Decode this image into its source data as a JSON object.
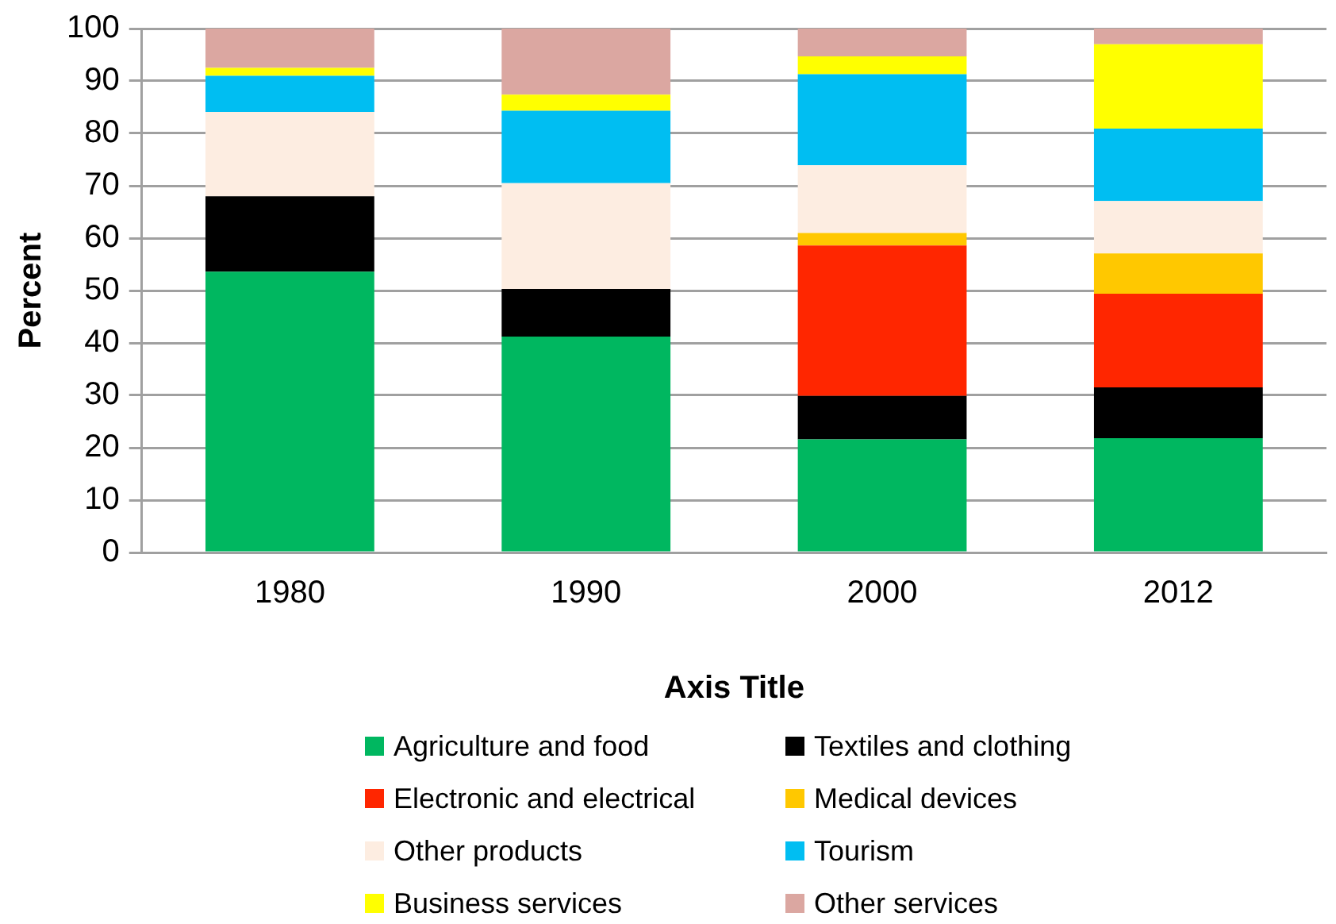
{
  "chart_data": {
    "type": "bar",
    "stacked": true,
    "xlabel": "Axis Title",
    "ylabel": "Percent",
    "categories": [
      "1980",
      "1990",
      "2000",
      "2012"
    ],
    "series": [
      {
        "name": "Agriculture and food",
        "color": "#00b760",
        "values": [
          53.6,
          41.2,
          21.6,
          21.8
        ]
      },
      {
        "name": "Textiles and clothing",
        "color": "#000000",
        "values": [
          14.4,
          9.1,
          8.3,
          9.7
        ]
      },
      {
        "name": "Electronic and electrical",
        "color": "#ff2600",
        "values": [
          0,
          0,
          28.7,
          17.9
        ]
      },
      {
        "name": "Medical devices",
        "color": "#ffc800",
        "values": [
          0,
          0,
          2.4,
          7.7
        ]
      },
      {
        "name": "Other products",
        "color": "#fdede1",
        "values": [
          16.1,
          20.2,
          12.9,
          10.0
        ]
      },
      {
        "name": "Tourism",
        "color": "#00bef2",
        "values": [
          6.9,
          13.8,
          17.4,
          13.8
        ]
      },
      {
        "name": "Business services",
        "color": "#ffff00",
        "values": [
          1.5,
          3.1,
          3.4,
          16.1
        ]
      },
      {
        "name": "Other services",
        "color": "#dba7a1",
        "values": [
          7.5,
          12.6,
          5.3,
          3.0
        ]
      }
    ],
    "ylim": [
      0,
      100
    ],
    "yticks": [
      0,
      10,
      20,
      30,
      40,
      50,
      60,
      70,
      80,
      90,
      100
    ],
    "grid": "y",
    "legend": "bottom"
  }
}
